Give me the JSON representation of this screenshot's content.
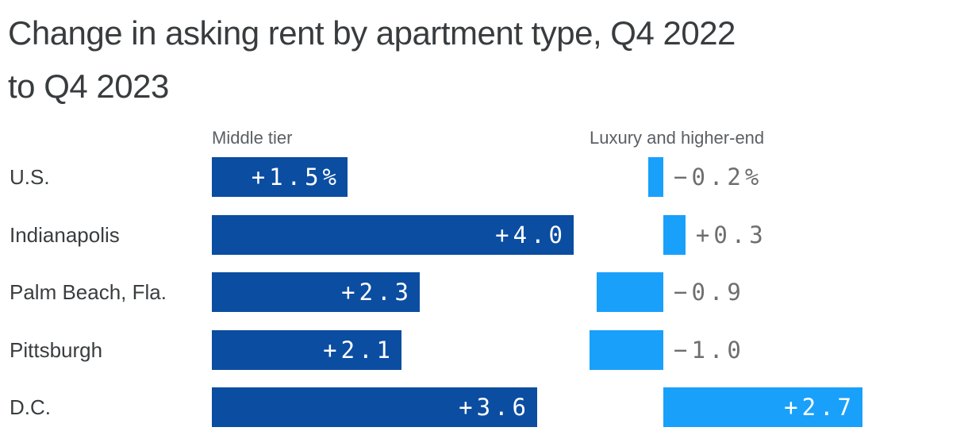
{
  "header": {
    "title_full": "Change in asking rent by apartment type, Q4 2022 to Q4 2023",
    "title_line1": "Change in asking rent by apartment type, Q4 2022",
    "title_line2": "to Q4 2023"
  },
  "columns": [
    {
      "header": "Middle tier"
    },
    {
      "header": "Luxury and higher-end"
    }
  ],
  "chart_data": {
    "type": "bar",
    "orientation": "horizontal",
    "title": "Change in asking rent by apartment type, Q4 2022 to Q4 2023",
    "unit": "% change in asking rent",
    "categories": [
      "U.S.",
      "Indianapolis",
      "Palm Beach, Fla.",
      "Pittsburgh",
      "D.C."
    ],
    "series": [
      {
        "name": "Middle tier",
        "color": "#0b4da1",
        "values": [
          1.5,
          4.0,
          2.3,
          2.1,
          3.6
        ],
        "labels": [
          "+1.5%",
          "+4.0",
          "+2.3",
          "+2.1",
          "+3.6"
        ],
        "label_inside": [
          true,
          true,
          true,
          true,
          true
        ],
        "axis_range": [
          0,
          4.0
        ]
      },
      {
        "name": "Luxury and higher-end",
        "color": "#19a0fb",
        "values": [
          -0.2,
          0.3,
          -0.9,
          -1.0,
          2.7
        ],
        "labels": [
          "−0.2%",
          "+0.3",
          "−0.9",
          "−1.0",
          "+2.7"
        ],
        "label_inside": [
          false,
          false,
          false,
          false,
          true
        ],
        "axis_range": [
          -1.0,
          2.7
        ]
      }
    ],
    "grid": false,
    "legend_position": "column-headers",
    "value_label_colors": {
      "inside": "#ffffff",
      "outside": "#6e6e6e"
    }
  },
  "colors": {
    "background": "#ffffff",
    "title": "#393c3e",
    "row_label": "#3a3d3f",
    "column_header": "#5b6064",
    "middle_bar": "#0b4da1",
    "luxury_bar": "#19a0fb",
    "value_inside": "#ffffff",
    "value_outside": "#6e6e6e"
  }
}
